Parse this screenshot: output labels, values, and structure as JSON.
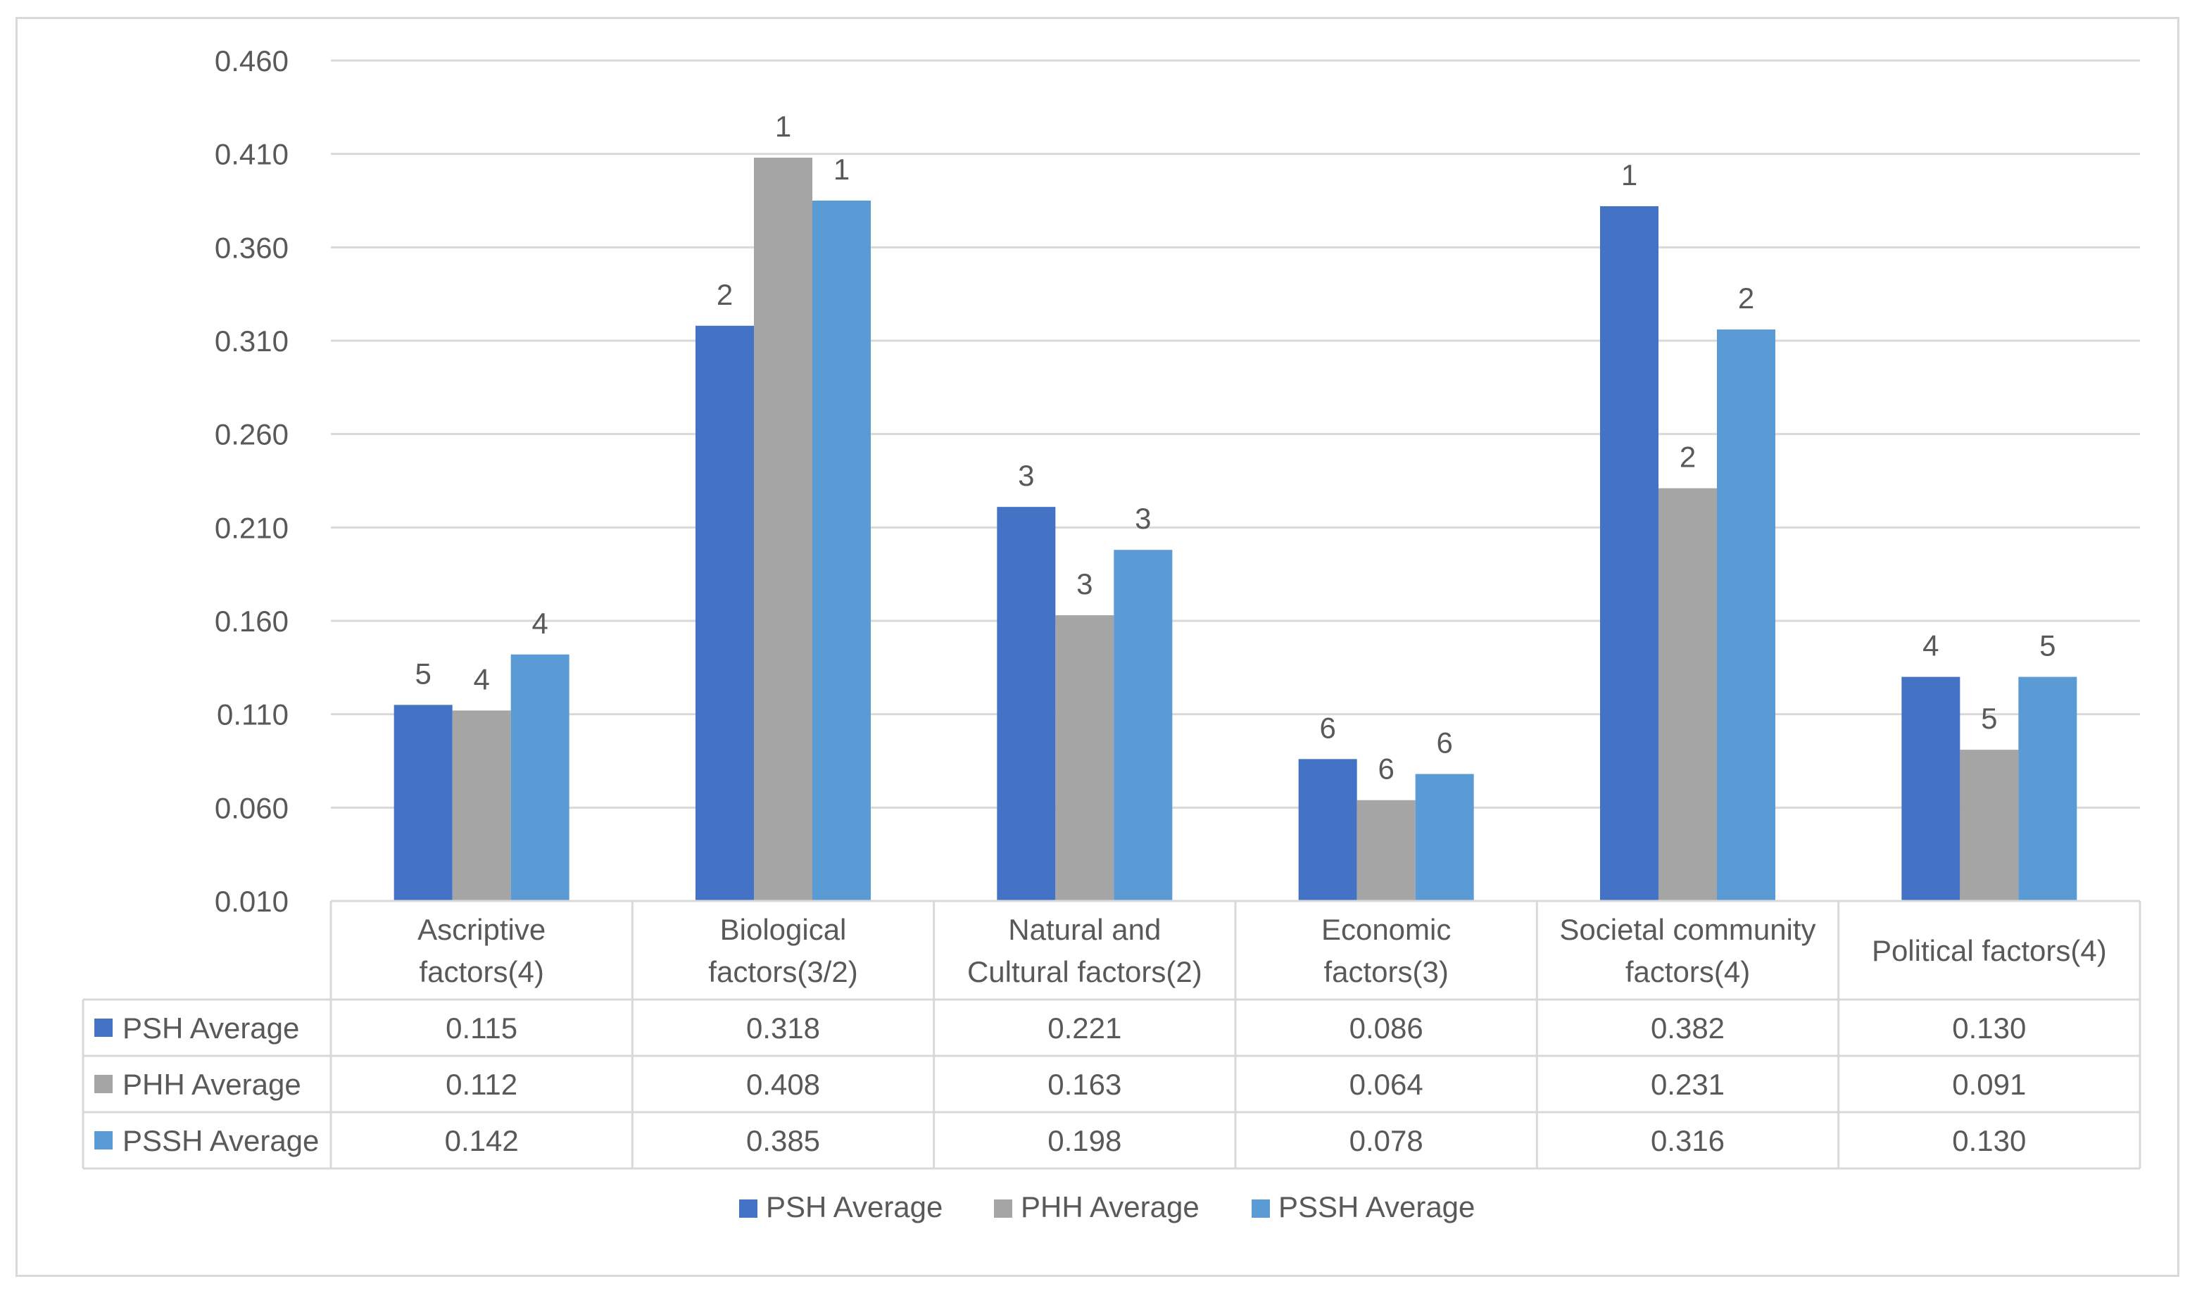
{
  "chart_data": {
    "type": "bar",
    "title": "",
    "xlabel": "",
    "ylabel": "",
    "ylim": [
      0.01,
      0.46
    ],
    "yticks": [
      "0.460",
      "0.410",
      "0.360",
      "0.310",
      "0.260",
      "0.210",
      "0.160",
      "0.110",
      "0.060",
      "0.010"
    ],
    "ytick_values": [
      0.46,
      0.41,
      0.36,
      0.31,
      0.26,
      0.21,
      0.16,
      0.11,
      0.06,
      0.01
    ],
    "grid": true,
    "categories": [
      [
        "Ascriptive",
        "factors(4)"
      ],
      [
        "Biological",
        "factors(3/2)"
      ],
      [
        "Natural and",
        "Cultural factors(2)"
      ],
      [
        "Economic",
        "factors(3)"
      ],
      [
        "Societal community",
        "factors(4)"
      ],
      [
        "Political factors(4)"
      ]
    ],
    "series": [
      {
        "name": "PSH Average",
        "color": "#4472c4",
        "values": [
          0.115,
          0.318,
          0.221,
          0.086,
          0.382,
          0.13
        ],
        "display": [
          "0.115",
          "0.318",
          "0.221",
          "0.086",
          "0.382",
          "0.130"
        ],
        "ranks": [
          "5",
          "2",
          "3",
          "6",
          "1",
          "4"
        ]
      },
      {
        "name": "PHH Average",
        "color": "#a5a5a5",
        "values": [
          0.112,
          0.408,
          0.163,
          0.064,
          0.231,
          0.091
        ],
        "display": [
          "0.112",
          "0.408",
          "0.163",
          "0.064",
          "0.231",
          "0.091"
        ],
        "ranks": [
          "4",
          "1",
          "3",
          "6",
          "2",
          "5"
        ]
      },
      {
        "name": "PSSH Average",
        "color": "#5b9bd5",
        "values": [
          0.142,
          0.385,
          0.198,
          0.078,
          0.316,
          0.13
        ],
        "display": [
          "0.142",
          "0.385",
          "0.198",
          "0.078",
          "0.316",
          "0.130"
        ],
        "ranks": [
          "4",
          "1",
          "3",
          "6",
          "2",
          "5"
        ]
      }
    ],
    "legend": "bottom",
    "data_table": true
  }
}
